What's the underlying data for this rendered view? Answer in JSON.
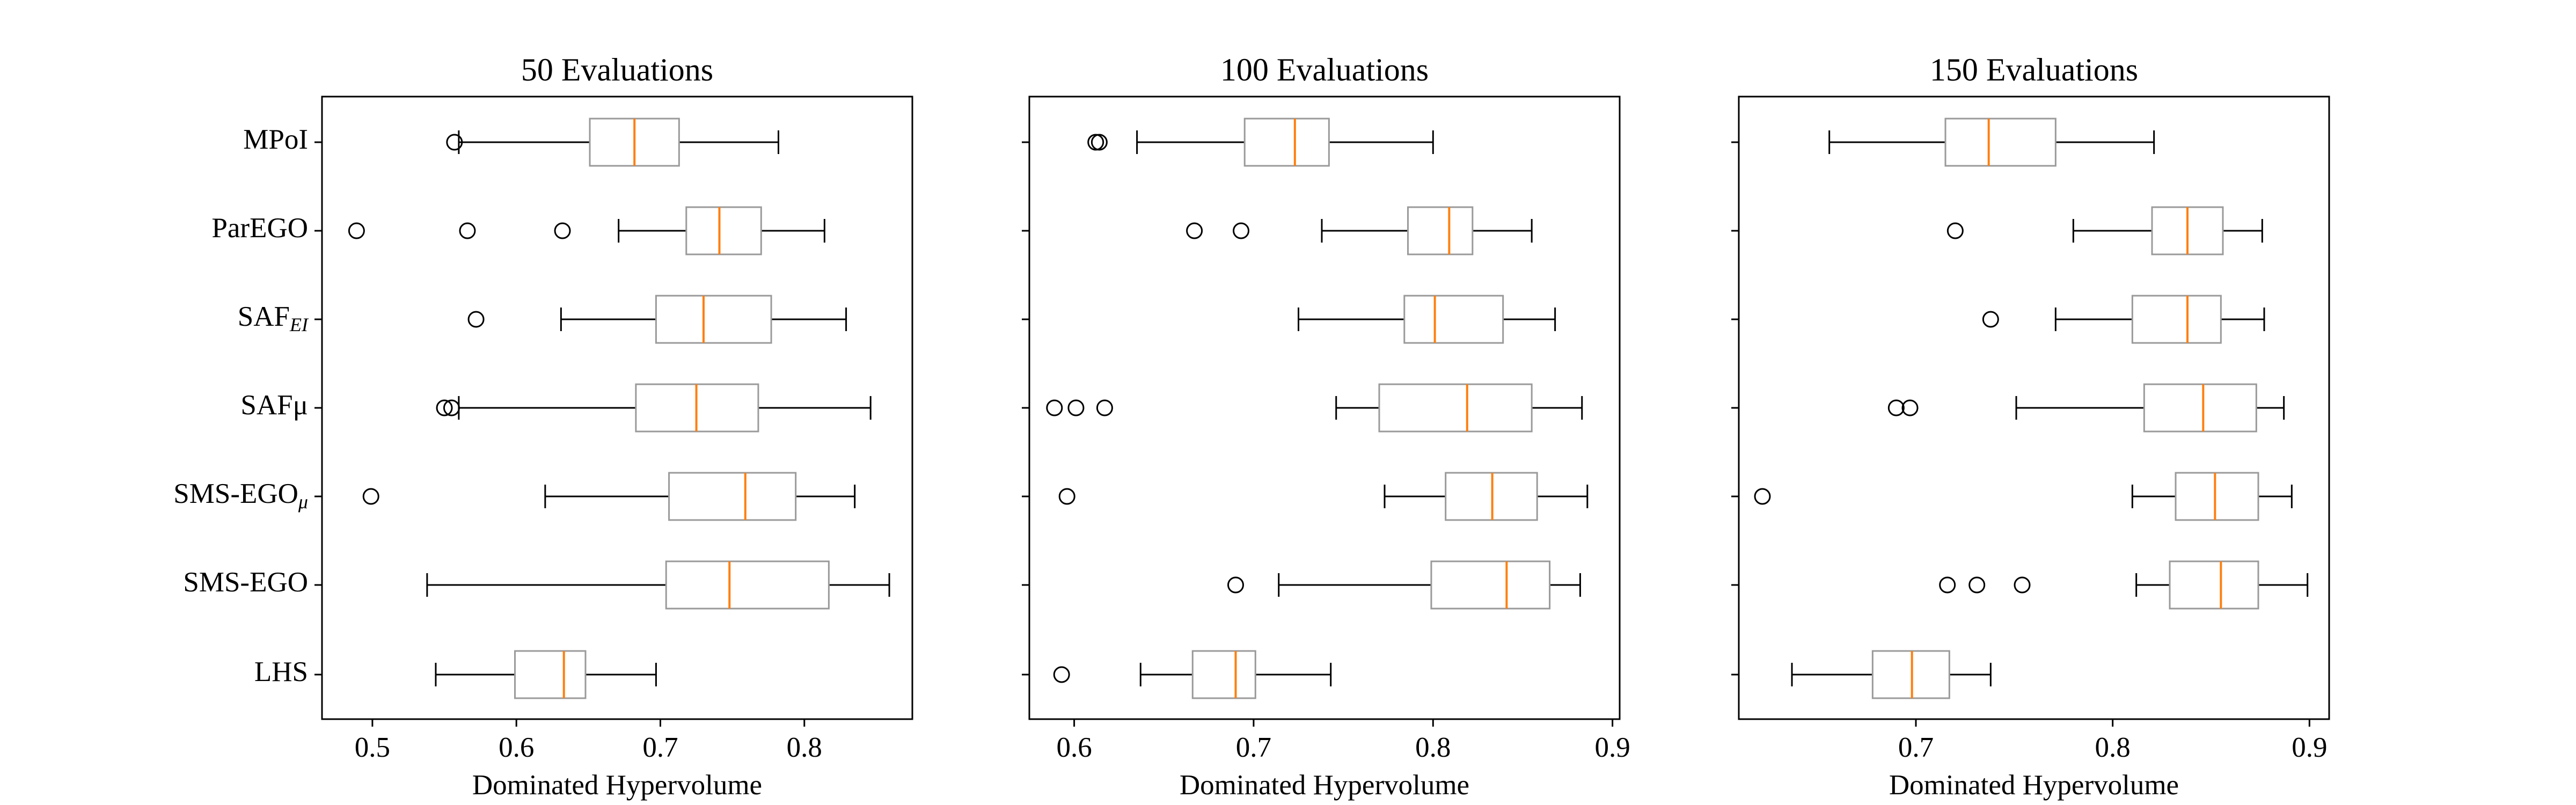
{
  "chart_data": [
    {
      "type": "boxplot",
      "title": "50 Evaluations",
      "xlabel": "Dominated Hypervolume",
      "xlim": [
        0.465,
        0.875
      ],
      "xticks": [
        0.5,
        0.6,
        0.7,
        0.8
      ],
      "tick_labels": [
        "0.5",
        "0.6",
        "0.7",
        "0.8"
      ],
      "categories": [
        "MPoI",
        "ParEGO",
        "SAF_EI",
        "SAFμ",
        "SMS-EGO_μ",
        "SMS-EGO",
        "LHS"
      ],
      "boxes": [
        {
          "whislo": 0.56,
          "q1": 0.651,
          "med": 0.682,
          "q3": 0.713,
          "whishi": 0.782,
          "fliers": [
            0.557
          ]
        },
        {
          "whislo": 0.671,
          "q1": 0.718,
          "med": 0.741,
          "q3": 0.77,
          "whishi": 0.814,
          "fliers": [
            0.489,
            0.566,
            0.632
          ]
        },
        {
          "whislo": 0.631,
          "q1": 0.697,
          "med": 0.73,
          "q3": 0.777,
          "whishi": 0.829,
          "fliers": [
            0.572
          ]
        },
        {
          "whislo": 0.56,
          "q1": 0.683,
          "med": 0.725,
          "q3": 0.768,
          "whishi": 0.846,
          "fliers": [
            0.55,
            0.555
          ]
        },
        {
          "whislo": 0.62,
          "q1": 0.706,
          "med": 0.759,
          "q3": 0.794,
          "whishi": 0.835,
          "fliers": [
            0.499
          ]
        },
        {
          "whislo": 0.538,
          "q1": 0.704,
          "med": 0.748,
          "q3": 0.817,
          "whishi": 0.859,
          "fliers": []
        },
        {
          "whislo": 0.544,
          "q1": 0.599,
          "med": 0.633,
          "q3": 0.648,
          "whishi": 0.697,
          "fliers": []
        }
      ]
    },
    {
      "type": "boxplot",
      "title": "100 Evaluations",
      "xlabel": "Dominated Hypervolume",
      "xlim": [
        0.575,
        0.904
      ],
      "xticks": [
        0.6,
        0.7,
        0.8,
        0.9
      ],
      "tick_labels": [
        "0.6",
        "0.7",
        "0.8",
        "0.9"
      ],
      "categories": [
        "MPoI",
        "ParEGO",
        "SAF_EI",
        "SAFμ",
        "SMS-EGO_μ",
        "SMS-EGO",
        "LHS"
      ],
      "boxes": [
        {
          "whislo": 0.635,
          "q1": 0.695,
          "med": 0.723,
          "q3": 0.742,
          "whishi": 0.8,
          "fliers": [
            0.612,
            0.614
          ]
        },
        {
          "whislo": 0.738,
          "q1": 0.786,
          "med": 0.809,
          "q3": 0.822,
          "whishi": 0.855,
          "fliers": [
            0.667,
            0.693
          ]
        },
        {
          "whislo": 0.725,
          "q1": 0.784,
          "med": 0.801,
          "q3": 0.839,
          "whishi": 0.868,
          "fliers": []
        },
        {
          "whislo": 0.746,
          "q1": 0.77,
          "med": 0.819,
          "q3": 0.855,
          "whishi": 0.883,
          "fliers": [
            0.589,
            0.601,
            0.617
          ]
        },
        {
          "whislo": 0.773,
          "q1": 0.807,
          "med": 0.833,
          "q3": 0.858,
          "whishi": 0.886,
          "fliers": [
            0.596
          ]
        },
        {
          "whislo": 0.714,
          "q1": 0.799,
          "med": 0.841,
          "q3": 0.865,
          "whishi": 0.882,
          "fliers": [
            0.69
          ]
        },
        {
          "whislo": 0.637,
          "q1": 0.666,
          "med": 0.69,
          "q3": 0.701,
          "whishi": 0.743,
          "fliers": [
            0.593
          ]
        }
      ]
    },
    {
      "type": "boxplot",
      "title": "150 Evaluations",
      "xlabel": "Dominated Hypervolume",
      "xlim": [
        0.61,
        0.91
      ],
      "xticks": [
        0.7,
        0.8,
        0.9
      ],
      "tick_labels": [
        "0.7",
        "0.8",
        "0.9"
      ],
      "categories": [
        "MPoI",
        "ParEGO",
        "SAF_EI",
        "SAFμ",
        "SMS-EGO_μ",
        "SMS-EGO",
        "LHS"
      ],
      "boxes": [
        {
          "whislo": 0.656,
          "q1": 0.715,
          "med": 0.737,
          "q3": 0.771,
          "whishi": 0.821,
          "fliers": []
        },
        {
          "whislo": 0.78,
          "q1": 0.82,
          "med": 0.838,
          "q3": 0.856,
          "whishi": 0.876,
          "fliers": [
            0.72
          ]
        },
        {
          "whislo": 0.771,
          "q1": 0.81,
          "med": 0.838,
          "q3": 0.855,
          "whishi": 0.877,
          "fliers": [
            0.738
          ]
        },
        {
          "whislo": 0.751,
          "q1": 0.816,
          "med": 0.846,
          "q3": 0.873,
          "whishi": 0.887,
          "fliers": [
            0.69,
            0.697
          ]
        },
        {
          "whislo": 0.81,
          "q1": 0.832,
          "med": 0.852,
          "q3": 0.874,
          "whishi": 0.891,
          "fliers": [
            0.622
          ]
        },
        {
          "whislo": 0.812,
          "q1": 0.829,
          "med": 0.855,
          "q3": 0.874,
          "whishi": 0.899,
          "fliers": [
            0.716,
            0.731,
            0.754
          ]
        },
        {
          "whislo": 0.637,
          "q1": 0.678,
          "med": 0.698,
          "q3": 0.717,
          "whishi": 0.738,
          "fliers": []
        }
      ]
    }
  ],
  "colors": {
    "box": "#9a9a9a",
    "median": "#ff7f0e",
    "whisker": "#000000",
    "frame": "#000000"
  }
}
